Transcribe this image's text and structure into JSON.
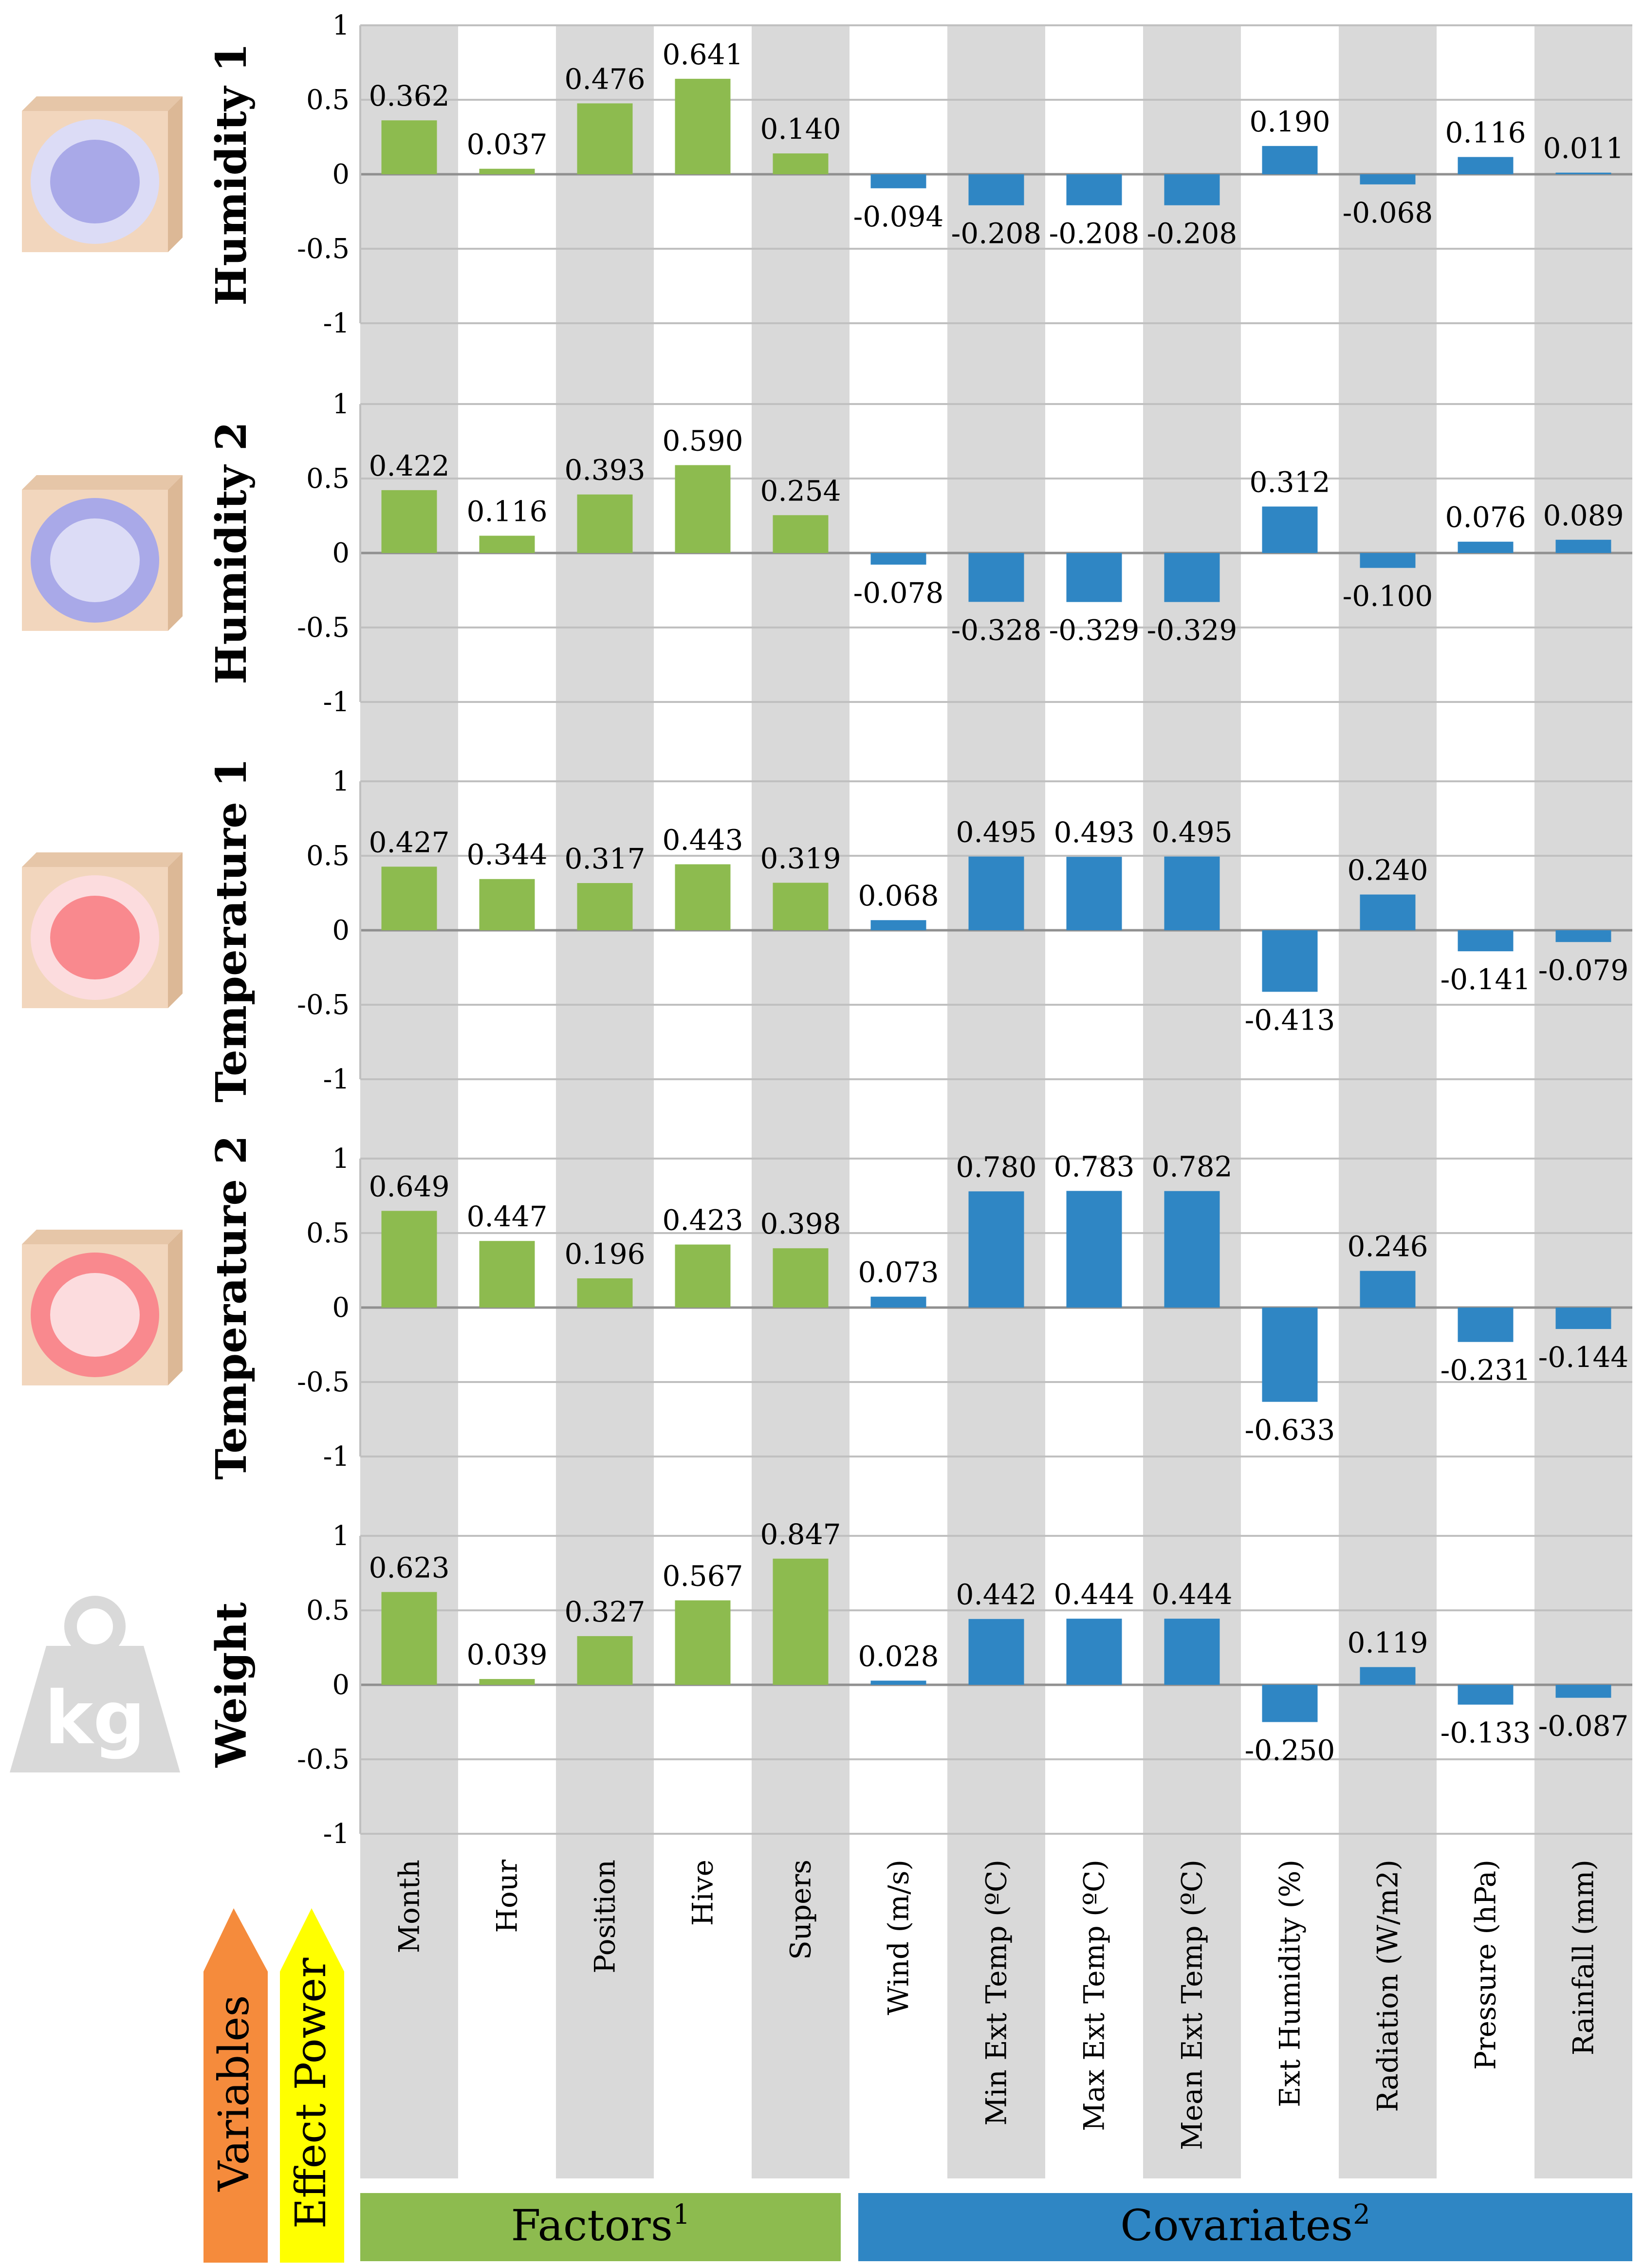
{
  "chart_data": {
    "type": "bar",
    "categories": [
      "Month",
      "Hour",
      "Position",
      "Hive",
      "Supers",
      "Wind (m/s)",
      "Min Ext Temp (ºC)",
      "Max Ext Temp (ºC)",
      "Mean Ext Temp (ºC)",
      "Ext Humidity (%)",
      "Radiation (W/m2)",
      "Pressure (hPa)",
      "Rainfall (mm)"
    ],
    "category_group": [
      "factor",
      "factor",
      "factor",
      "factor",
      "factor",
      "covariate",
      "covariate",
      "covariate",
      "covariate",
      "covariate",
      "covariate",
      "covariate",
      "covariate"
    ],
    "ylim": [
      -1,
      1
    ],
    "yticks": [
      1,
      0.5,
      0,
      -0.5,
      -1
    ],
    "ytick_labels": [
      "1",
      "0.5",
      "0",
      "-0.5",
      "-1"
    ],
    "series": [
      {
        "name": "Humidity 1",
        "icon": "hive-humidity-1-icon",
        "values": [
          0.362,
          0.037,
          0.476,
          0.641,
          0.14,
          -0.094,
          -0.208,
          -0.208,
          -0.208,
          0.19,
          -0.068,
          0.116,
          0.011
        ],
        "labels": [
          "0.362",
          "0.037",
          "0.476",
          "0.641",
          "0.140",
          "-0.094",
          "-0.208",
          "-0.208",
          "-0.208",
          "0.190",
          "-0.068",
          "0.116",
          "0.011"
        ]
      },
      {
        "name": "Humidity 2",
        "icon": "hive-humidity-2-icon",
        "values": [
          0.422,
          0.116,
          0.393,
          0.59,
          0.254,
          -0.078,
          -0.328,
          -0.329,
          -0.329,
          0.312,
          -0.1,
          0.076,
          0.089
        ],
        "labels": [
          "0.422",
          "0.116",
          "0.393",
          "0.590",
          "0.254",
          "-0.078",
          "-0.328",
          "-0.329",
          "-0.329",
          "0.312",
          "-0.100",
          "0.076",
          "0.089"
        ]
      },
      {
        "name": "Temperature 1",
        "icon": "hive-temperature-1-icon",
        "values": [
          0.427,
          0.344,
          0.317,
          0.443,
          0.319,
          0.068,
          0.495,
          0.493,
          0.495,
          -0.413,
          0.24,
          -0.141,
          -0.079
        ],
        "labels": [
          "0.427",
          "0.344",
          "0.317",
          "0.443",
          "0.319",
          "0.068",
          "0.495",
          "0.493",
          "0.495",
          "-0.413",
          "0.240",
          "-0.141",
          "-0.079"
        ]
      },
      {
        "name": "Temperature 2",
        "icon": "hive-temperature-2-icon",
        "values": [
          0.649,
          0.447,
          0.196,
          0.423,
          0.398,
          0.073,
          0.78,
          0.783,
          0.782,
          -0.633,
          0.246,
          -0.231,
          -0.144
        ],
        "labels": [
          "0.649",
          "0.447",
          "0.196",
          "0.423",
          "0.398",
          "0.073",
          "0.780",
          "0.783",
          "0.782",
          "-0.633",
          "0.246",
          "-0.231",
          "-0.144"
        ]
      },
      {
        "name": "Weight",
        "icon": "weight-kg-icon",
        "values": [
          0.623,
          0.039,
          0.327,
          0.567,
          0.847,
          0.028,
          0.442,
          0.444,
          0.444,
          -0.25,
          0.119,
          -0.133,
          -0.087
        ],
        "labels": [
          "0.623",
          "0.039",
          "0.327",
          "0.567",
          "0.847",
          "0.028",
          "0.442",
          "0.444",
          "0.444",
          "-0.250",
          "0.119",
          "-0.133",
          "-0.087"
        ]
      }
    ],
    "group_labels": {
      "factors": "Factors",
      "factors_sup": "1",
      "covariates": "Covariates",
      "covariates_sup": "2"
    },
    "row_header_labels": {
      "variables": "Variables",
      "effect_power": "Effect Power"
    },
    "weight_icon_text": "kg",
    "colors": {
      "factor_bar": "#8dbb4f",
      "covariate_bar": "#2f86c4",
      "stripe": "#d9d9d9",
      "gridline": "#c0c0c0",
      "zero_line": "#909090",
      "variables_arrow": "#f58b3c",
      "effect_arrow": "#ffff00",
      "factors_band": "#8dbb4f",
      "covariates_band": "#2f86c4",
      "hive_wood": "#f2d6bd",
      "humidity_dark": "#a9a9e8",
      "humidity_light": "#dcdcf6",
      "temperature_dark": "#f9898e",
      "temperature_light": "#fcdcde",
      "weight_grey": "#d9d9d9"
    }
  }
}
